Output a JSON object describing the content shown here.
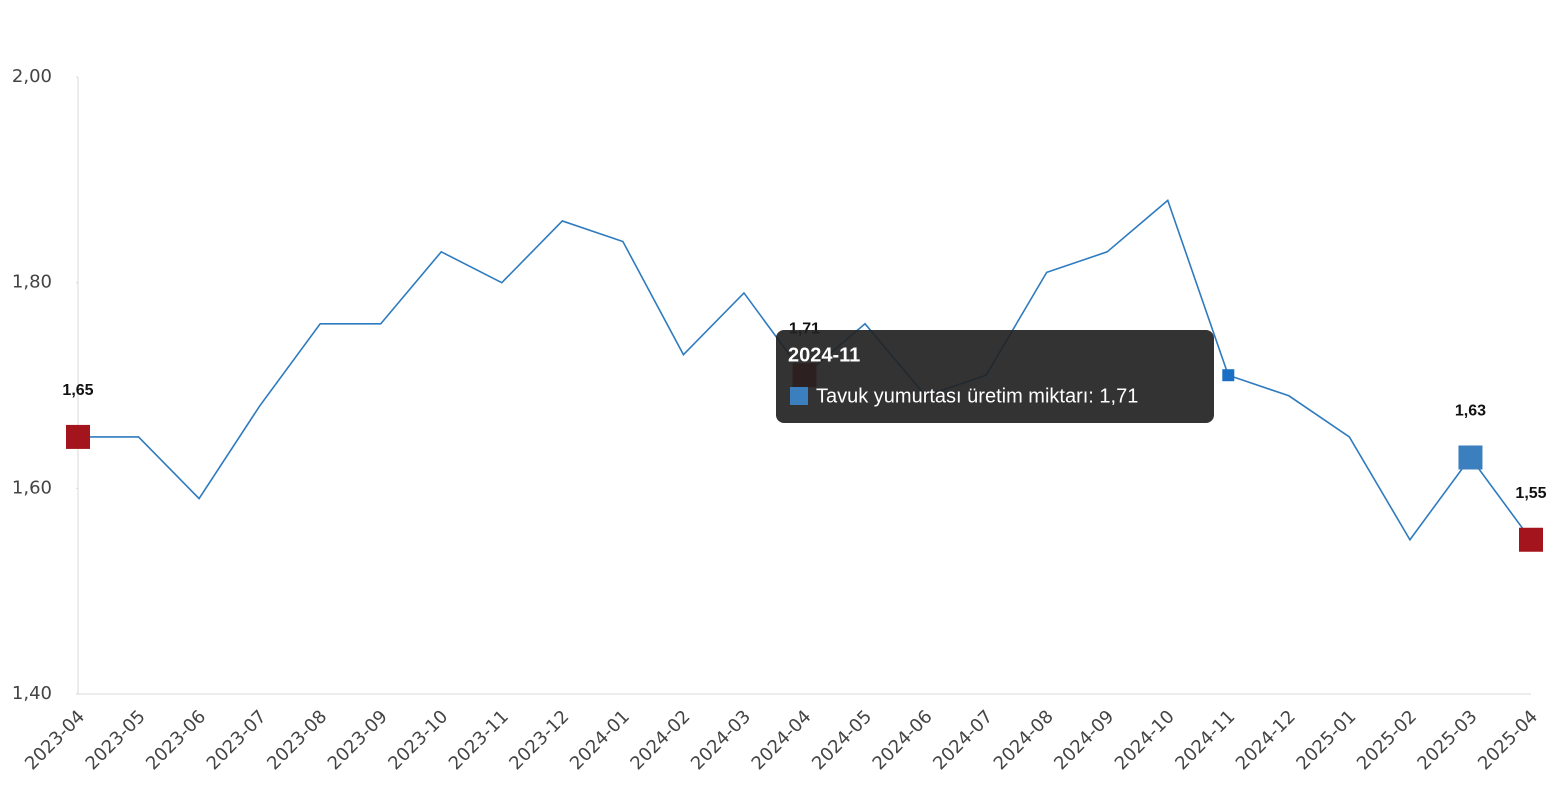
{
  "chart_data": {
    "type": "line",
    "categories": [
      "2023-04",
      "2023-05",
      "2023-06",
      "2023-07",
      "2023-08",
      "2023-09",
      "2023-10",
      "2023-11",
      "2023-12",
      "2024-01",
      "2024-02",
      "2024-03",
      "2024-04",
      "2024-05",
      "2024-06",
      "2024-07",
      "2024-08",
      "2024-09",
      "2024-10",
      "2024-11",
      "2024-12",
      "2025-01",
      "2025-02",
      "2025-03",
      "2025-04"
    ],
    "series": [
      {
        "color": "#2e7bbf",
        "values": [
          1.65,
          1.65,
          1.59,
          1.68,
          1.76,
          1.76,
          1.83,
          1.8,
          1.86,
          1.84,
          1.73,
          1.79,
          1.71,
          1.76,
          1.69,
          1.71,
          1.81,
          1.83,
          1.88,
          1.71,
          1.69,
          1.65,
          1.55,
          1.63,
          1.55
        ],
        "value_labels": [
          "1,65",
          null,
          null,
          null,
          null,
          null,
          null,
          null,
          null,
          null,
          null,
          null,
          "1,71",
          null,
          null,
          null,
          null,
          null,
          null,
          null,
          null,
          null,
          null,
          "1,63",
          "1,55"
        ],
        "marker_colors": [
          "#a3141c",
          null,
          null,
          null,
          null,
          null,
          null,
          null,
          null,
          null,
          null,
          null,
          "#a3141c",
          null,
          null,
          null,
          null,
          null,
          null,
          null,
          null,
          null,
          null,
          "#3b7fbf",
          "#a3141c"
        ]
      }
    ],
    "ylim": [
      1.4,
      2.0
    ],
    "yticks": [
      {
        "value": 1.4,
        "label": "1,40"
      },
      {
        "value": 1.6,
        "label": "1,60"
      },
      {
        "value": 1.8,
        "label": "1,80"
      },
      {
        "value": 2.0,
        "label": "2,00"
      }
    ],
    "grid": false,
    "tooltip": {
      "title": "2024-11",
      "text": "Tavuk yumurtası üretim miktarı: 1,71",
      "color": "#3b7fbf"
    }
  }
}
